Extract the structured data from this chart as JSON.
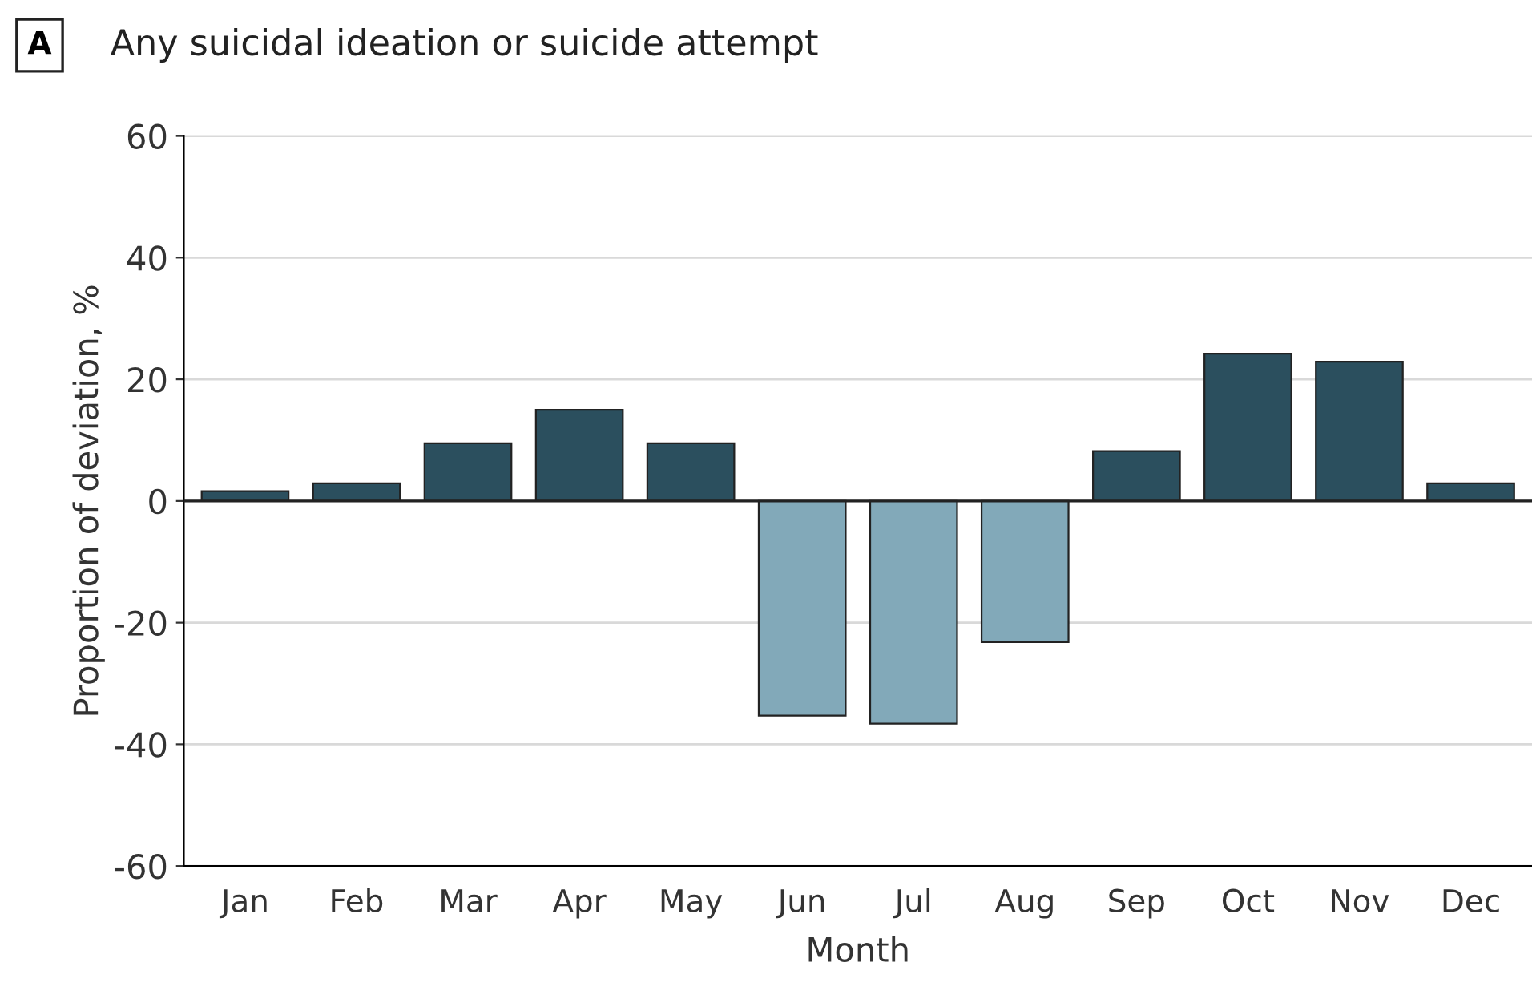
{
  "chart_data": {
    "type": "bar",
    "title": "Any suicidal ideation or suicide attempt",
    "annotations": [
      "A"
    ],
    "xlabel": "Month",
    "ylabel": "Proportion of deviation, %",
    "categories": [
      "Jan",
      "Feb",
      "Mar",
      "Apr",
      "May",
      "Jun",
      "Jul",
      "Aug",
      "Sep",
      "Oct",
      "Nov",
      "Dec"
    ],
    "values": [
      1.6,
      2.9,
      9.5,
      15,
      9.5,
      -35.3,
      -36.6,
      -23.2,
      8.2,
      24.2,
      22.9,
      2.9
    ],
    "colors": [
      "#2b4f5e",
      "#2b4f5e",
      "#2b4f5e",
      "#2b4f5e",
      "#2b4f5e",
      "#82a9b9",
      "#82a9b9",
      "#82a9b9",
      "#2b4f5e",
      "#2b4f5e",
      "#2b4f5e",
      "#2b4f5e"
    ],
    "ylim": [
      -60,
      60
    ],
    "yticks": [
      -60,
      -40,
      -20,
      0,
      20,
      40,
      60
    ],
    "ref_lines": [
      {
        "axis": "y",
        "value": 0,
        "color": "#222222"
      }
    ],
    "grid": "y",
    "legend": false
  }
}
